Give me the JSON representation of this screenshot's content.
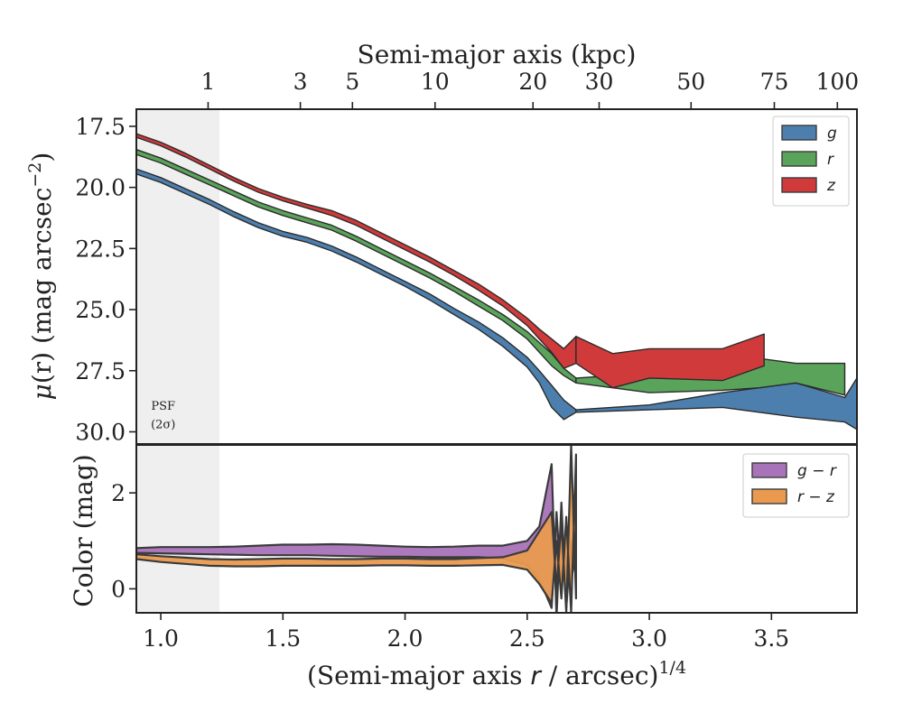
{
  "chart_data": [
    {
      "type": "area",
      "panel": "top",
      "xlabel": "(Semi-major axis r / arcsec)^1/4",
      "ylabel": "μ(r) (mag arcsec⁻²)",
      "ylim": [
        30.5,
        16.8
      ],
      "xlim": [
        0.9,
        3.85
      ],
      "y_ticks": [
        "17.5",
        "20.0",
        "22.5",
        "25.0",
        "27.5",
        "30.0"
      ],
      "legend_position": "upper right",
      "psf_region": {
        "x_range": [
          0.9,
          1.24
        ],
        "label_line1": "PSF",
        "label_line2": "(2σ)"
      },
      "top_axis": {
        "title": "Semi-major axis (kpc)",
        "ticks": [
          {
            "label": "1",
            "x": 1.1937
          },
          {
            "label": "3",
            "x": 1.5714
          },
          {
            "label": "5",
            "x": 1.7846
          },
          {
            "label": "10",
            "x": 2.1229
          },
          {
            "label": "20",
            "x": 2.5238
          },
          {
            "label": "30",
            "x": 2.7946
          },
          {
            "label": "50",
            "x": 3.1709
          },
          {
            "label": "75",
            "x": 3.5117
          },
          {
            "label": "100",
            "x": 3.7698
          }
        ]
      },
      "series": [
        {
          "name": "g",
          "color": "#4c7fae",
          "x": [
            0.9,
            1.0,
            1.1,
            1.2,
            1.3,
            1.4,
            1.5,
            1.6,
            1.7,
            1.8,
            1.9,
            2.0,
            2.1,
            2.2,
            2.3,
            2.4,
            2.5,
            2.55,
            2.6,
            2.65,
            2.7
          ],
          "y_bright": [
            19.25,
            19.6,
            20.05,
            20.5,
            21.0,
            21.45,
            21.8,
            22.05,
            22.4,
            22.85,
            23.35,
            23.85,
            24.35,
            24.95,
            25.5,
            26.15,
            26.95,
            27.5,
            28.1,
            28.7,
            29.1
          ],
          "y_faint": [
            19.45,
            19.8,
            20.25,
            20.7,
            21.2,
            21.65,
            22.0,
            22.25,
            22.6,
            23.05,
            23.55,
            24.05,
            24.6,
            25.2,
            25.8,
            26.5,
            27.35,
            28.0,
            29.0,
            29.5,
            29.2
          ],
          "tail_x": [
            2.7,
            3.0,
            3.3,
            3.6,
            3.8,
            3.85
          ],
          "tail_bright": [
            29.1,
            28.9,
            28.4,
            28.0,
            28.6,
            27.8
          ],
          "tail_faint": [
            29.2,
            29.1,
            29.0,
            29.4,
            29.6,
            29.9
          ]
        },
        {
          "name": "r",
          "color": "#5aa35a",
          "x": [
            0.9,
            1.0,
            1.1,
            1.2,
            1.3,
            1.4,
            1.5,
            1.6,
            1.7,
            1.8,
            1.9,
            2.0,
            2.1,
            2.2,
            2.3,
            2.4,
            2.5,
            2.55,
            2.6,
            2.65,
            2.7
          ],
          "y_bright": [
            18.45,
            18.8,
            19.25,
            19.7,
            20.15,
            20.6,
            20.95,
            21.25,
            21.55,
            22.0,
            22.5,
            23.0,
            23.5,
            24.05,
            24.6,
            25.2,
            25.9,
            26.35,
            26.8,
            27.4,
            27.8
          ],
          "y_faint": [
            18.65,
            19.0,
            19.45,
            19.9,
            20.35,
            20.8,
            21.15,
            21.45,
            21.75,
            22.2,
            22.7,
            23.2,
            23.7,
            24.25,
            24.85,
            25.45,
            26.2,
            26.75,
            27.3,
            27.7,
            28.0
          ],
          "tail_x": [
            2.7,
            3.0,
            3.3,
            3.45,
            3.6,
            3.8
          ],
          "tail_bright": [
            27.8,
            27.6,
            27.5,
            27.0,
            27.2,
            27.2
          ],
          "tail_faint": [
            28.0,
            28.4,
            28.3,
            28.2,
            28.0,
            28.5
          ]
        },
        {
          "name": "z",
          "color": "#d03a3a",
          "x": [
            0.9,
            1.0,
            1.1,
            1.2,
            1.3,
            1.4,
            1.5,
            1.6,
            1.7,
            1.8,
            1.9,
            2.0,
            2.1,
            2.2,
            2.3,
            2.4,
            2.5,
            2.55,
            2.6,
            2.65,
            2.7
          ],
          "y_bright": [
            17.8,
            18.15,
            18.6,
            19.1,
            19.6,
            20.05,
            20.4,
            20.7,
            20.95,
            21.35,
            21.85,
            22.35,
            22.85,
            23.4,
            23.95,
            24.6,
            25.35,
            25.8,
            26.2,
            26.6,
            26.1
          ],
          "y_faint": [
            17.95,
            18.3,
            18.75,
            19.25,
            19.75,
            20.2,
            20.55,
            20.85,
            21.15,
            21.55,
            22.05,
            22.55,
            23.05,
            23.6,
            24.2,
            24.85,
            25.65,
            26.2,
            26.75,
            27.4,
            27.2
          ],
          "tail_x": [
            2.7,
            2.85,
            3.0,
            3.3,
            3.47
          ],
          "tail_bright": [
            26.1,
            26.8,
            26.6,
            26.6,
            26.0
          ],
          "tail_faint": [
            27.2,
            28.2,
            27.8,
            27.9,
            27.3
          ]
        }
      ]
    },
    {
      "type": "area",
      "panel": "bottom",
      "ylabel": "Color (mag)",
      "xlabel": "(Semi-major axis r / arcsec)^1/4",
      "x_ticks": [
        "1.0",
        "1.5",
        "2.0",
        "2.5",
        "3.0",
        "3.5"
      ],
      "x_tick_values": [
        1.0,
        1.5,
        2.0,
        2.5,
        3.0,
        3.5
      ],
      "y_ticks": [
        "0",
        "2"
      ],
      "y_tick_values": [
        0,
        2
      ],
      "ylim": [
        -0.5,
        3.0
      ],
      "legend_position": "upper right",
      "series": [
        {
          "name": "g − r",
          "color": "#a873b8",
          "x": [
            0.9,
            1.0,
            1.1,
            1.2,
            1.3,
            1.4,
            1.5,
            1.6,
            1.7,
            1.8,
            1.9,
            2.0,
            2.1,
            2.2,
            2.3,
            2.4,
            2.5,
            2.55,
            2.6,
            2.62,
            2.64,
            2.66,
            2.68,
            2.7
          ],
          "y_high": [
            0.85,
            0.87,
            0.87,
            0.87,
            0.88,
            0.9,
            0.92,
            0.92,
            0.93,
            0.92,
            0.9,
            0.88,
            0.87,
            0.88,
            0.9,
            0.9,
            1.0,
            1.3,
            2.6,
            -0.6,
            1.8,
            -0.4,
            1.0,
            0.6
          ],
          "y_low": [
            0.75,
            0.74,
            0.73,
            0.72,
            0.71,
            0.7,
            0.7,
            0.7,
            0.69,
            0.68,
            0.67,
            0.67,
            0.66,
            0.66,
            0.66,
            0.63,
            0.5,
            0.2,
            -0.4,
            1.6,
            0.0,
            1.2,
            0.2,
            0.7
          ]
        },
        {
          "name": "r − z",
          "color": "#e99a4f",
          "x": [
            0.9,
            1.0,
            1.1,
            1.2,
            1.3,
            1.4,
            1.5,
            1.6,
            1.7,
            1.8,
            1.9,
            2.0,
            2.1,
            2.2,
            2.3,
            2.4,
            2.5,
            2.55,
            2.6,
            2.62,
            2.64,
            2.66,
            2.68,
            2.7
          ],
          "y_high": [
            0.72,
            0.68,
            0.65,
            0.62,
            0.61,
            0.62,
            0.63,
            0.63,
            0.62,
            0.62,
            0.63,
            0.63,
            0.62,
            0.62,
            0.64,
            0.66,
            0.8,
            1.2,
            1.6,
            0.0,
            1.4,
            -0.5,
            3.0,
            -0.2
          ],
          "y_low": [
            0.62,
            0.56,
            0.52,
            0.48,
            0.47,
            0.47,
            0.48,
            0.48,
            0.48,
            0.48,
            0.49,
            0.49,
            0.48,
            0.48,
            0.49,
            0.5,
            0.4,
            0.1,
            -0.3,
            1.0,
            -0.2,
            1.5,
            -0.5,
            2.8
          ]
        }
      ]
    }
  ],
  "top_axis_title": "Semi-major axis (kpc)",
  "bottom_axis_title_prefix": "(Semi-major axis ",
  "bottom_axis_title_var": "r",
  "bottom_axis_title_suffix": " / arcsec)",
  "bottom_axis_title_exp": "1/4",
  "top_ylabel_mu": "μ",
  "top_ylabel_rest": "(r) (mag arcsec",
  "top_ylabel_exp": "−2",
  "top_ylabel_close": ")",
  "bottom_ylabel": "Color (mag)",
  "psf_label_line1": "PSF",
  "psf_label_line2": "(2σ)"
}
